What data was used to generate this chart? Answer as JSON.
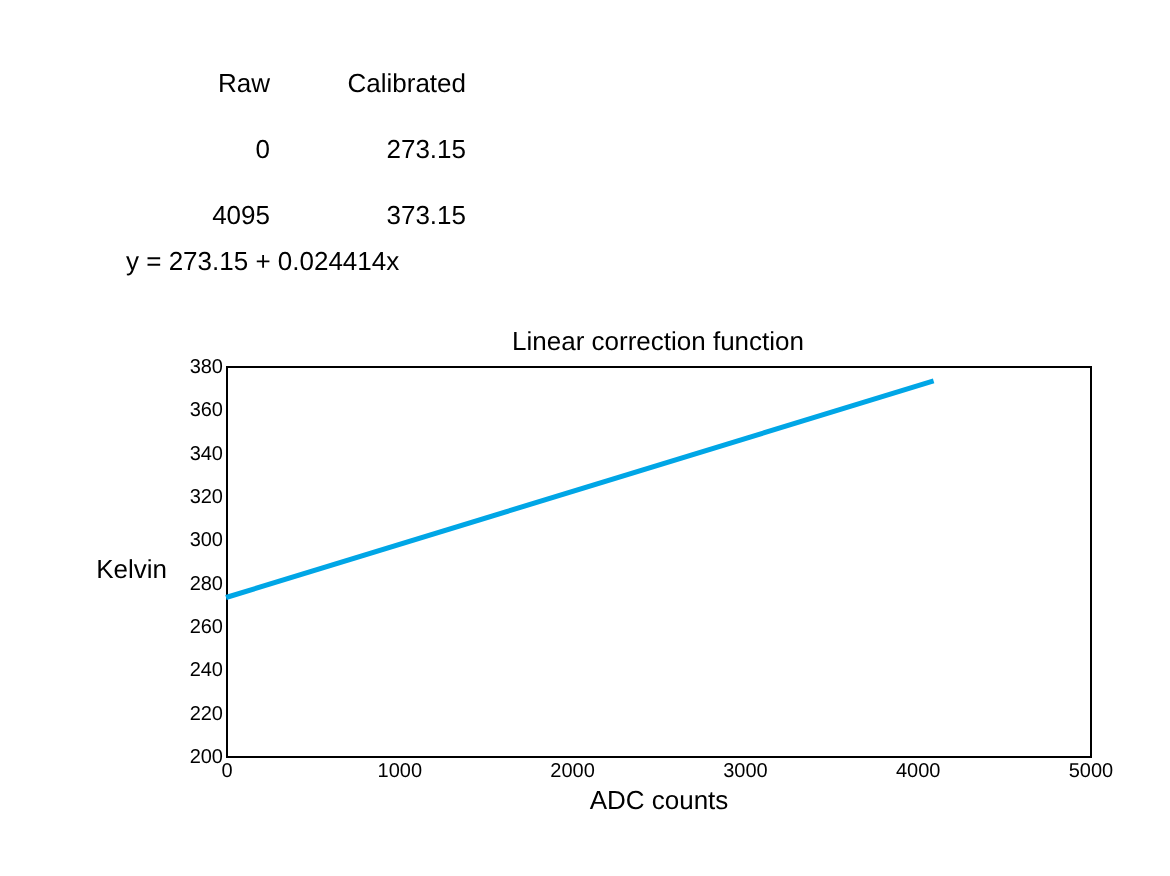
{
  "chart_data": {
    "type": "line",
    "title": "Linear correction function",
    "xlabel": "ADC counts",
    "ylabel": "Kelvin",
    "x": [
      0,
      4095
    ],
    "series": [
      {
        "color": "#00a6e6",
        "values": [
          273.15,
          373.15
        ]
      }
    ],
    "xlim": [
      0,
      5000
    ],
    "xticks": [
      0,
      1000,
      2000,
      3000,
      4000,
      5000
    ],
    "ylim": [
      200,
      380
    ],
    "yticks": [
      200,
      220,
      240,
      260,
      280,
      300,
      320,
      340,
      360,
      380
    ],
    "grid": false,
    "legend": false,
    "marker": "none",
    "line_style": "solid",
    "annotations": [
      "Raw",
      "Calibrated",
      "0",
      "273.15",
      "4095",
      "373.15",
      "y = 273.15 + 0.024414x"
    ]
  }
}
